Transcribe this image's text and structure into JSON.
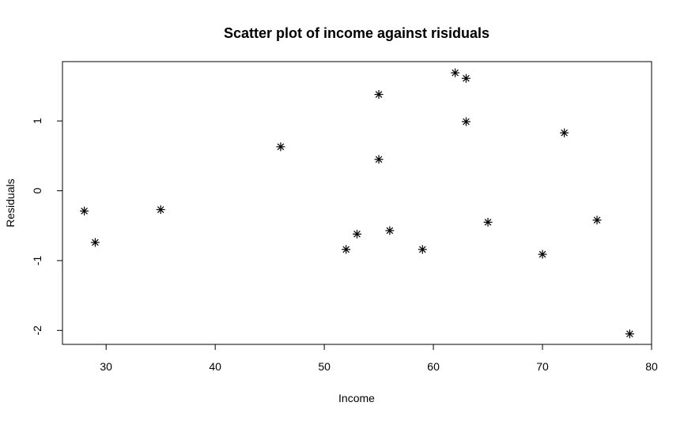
{
  "chart_data": {
    "type": "scatter",
    "title": "Scatter plot of income against risiduals",
    "xlabel": "Income",
    "ylabel": "Residuals",
    "xlim": [
      26,
      80
    ],
    "ylim": [
      -2.2,
      1.85
    ],
    "xticks": [
      30,
      40,
      50,
      60,
      70,
      80
    ],
    "yticks": [
      -2,
      -1,
      0,
      1
    ],
    "marker": "asterisk",
    "grid": false,
    "points": [
      {
        "x": 28,
        "y": -0.29
      },
      {
        "x": 29,
        "y": -0.74
      },
      {
        "x": 35,
        "y": -0.27
      },
      {
        "x": 46,
        "y": 0.63
      },
      {
        "x": 52,
        "y": -0.84
      },
      {
        "x": 53,
        "y": -0.62
      },
      {
        "x": 55,
        "y": 1.38
      },
      {
        "x": 55,
        "y": 0.45
      },
      {
        "x": 56,
        "y": -0.57
      },
      {
        "x": 59,
        "y": -0.84
      },
      {
        "x": 62,
        "y": 1.69
      },
      {
        "x": 63,
        "y": 1.61
      },
      {
        "x": 63,
        "y": 0.99
      },
      {
        "x": 65,
        "y": -0.45
      },
      {
        "x": 70,
        "y": -0.91
      },
      {
        "x": 72,
        "y": 0.83
      },
      {
        "x": 75,
        "y": -0.42
      },
      {
        "x": 78,
        "y": -2.05
      }
    ]
  }
}
